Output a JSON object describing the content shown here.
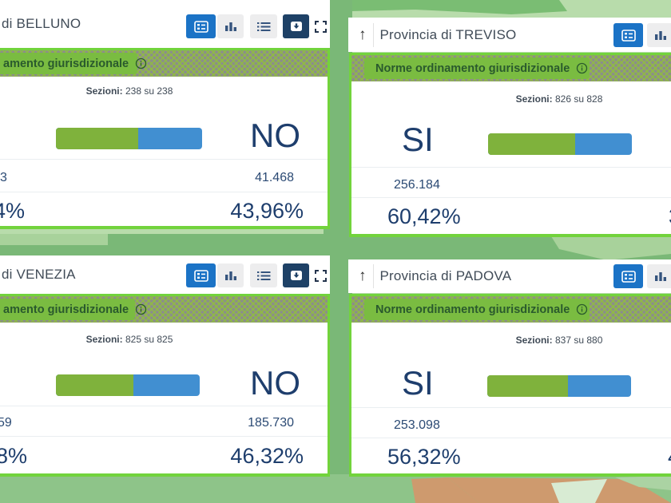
{
  "labels": {
    "sezioni": "Sezioni:"
  },
  "icons": {
    "up_arrow": "↑"
  },
  "toolbar": {
    "icons": [
      "card-view",
      "bar-chart",
      "list-view",
      "download",
      "expand"
    ]
  },
  "colors": {
    "si_green": "#7fb23c",
    "no_blue": "#418fd1",
    "navy": "#1e3e6d",
    "card_border": "#72d33c",
    "banner_green": "#7abc41",
    "banner_text": "#2a5a2d",
    "hatch_gray": "#8b8f89",
    "active_button_blue": "#1b73c6",
    "download_button_navy": "#1e4166"
  },
  "panels": [
    {
      "key": "belluno",
      "title_visible": "di BELLUNO",
      "banner_visible": "amento giurisdizionale",
      "sezioni_value": "238 su 238",
      "answer_label": "NO",
      "si_votes_fragment": "3",
      "no_votes": "41.468",
      "si_pct_fragment": "4%",
      "no_pct": "43,96%",
      "bar_green_pct": 56.04
    },
    {
      "key": "treviso",
      "title_visible": "Provincia di TREVISO",
      "banner_visible": "Norme ordinamento giurisdizionale",
      "sezioni_value": "826 su 828",
      "answer_label": "SI",
      "si_votes": "256.184",
      "si_pct": "60,42%",
      "no_pct_fragment": "3",
      "bar_green_pct": 60.42
    },
    {
      "key": "venezia",
      "title_visible": "di VENEZIA",
      "banner_visible": "amento giurisdizionale",
      "sezioni_value": "825 su 825",
      "answer_label": "NO",
      "si_votes_fragment": "59",
      "no_votes": "185.730",
      "si_pct_fragment": "8%",
      "no_pct": "46,32%",
      "bar_green_pct": 53.68
    },
    {
      "key": "padova",
      "title_visible": "Provincia di PADOVA",
      "banner_visible": "Norme ordinamento giurisdizionale",
      "sezioni_value": "837 su 880",
      "answer_label": "SI",
      "si_votes": "253.098",
      "si_pct": "56,32%",
      "no_pct_fragment": "4",
      "bar_green_pct": 56.32
    }
  ]
}
